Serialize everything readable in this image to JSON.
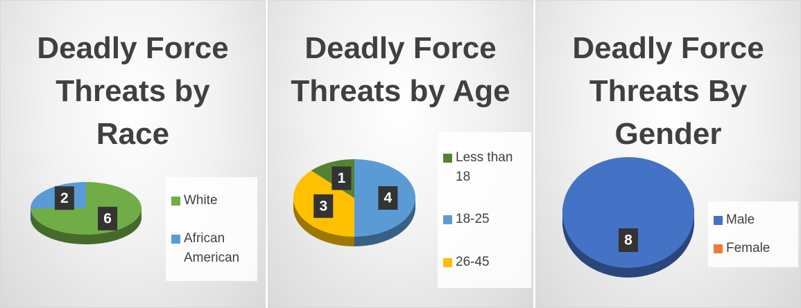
{
  "chart_data": [
    {
      "type": "pie",
      "title": "Deadly Force Threats by Race",
      "categories": [
        "White",
        "African American"
      ],
      "values": [
        6,
        2
      ],
      "colors": [
        "#70ad47",
        "#5b9bd5"
      ],
      "legend": "right"
    },
    {
      "type": "pie",
      "title": "Deadly Force Threats by Age",
      "categories": [
        "Less than 18",
        "18-25",
        "26-45"
      ],
      "values": [
        1,
        4,
        3
      ],
      "colors": [
        "#548235",
        "#5b9bd5",
        "#ffc000"
      ],
      "legend": "right"
    },
    {
      "type": "pie",
      "title": "Deadly Force Threats By Gender",
      "categories": [
        "Male",
        "Female"
      ],
      "values": [
        8,
        0
      ],
      "colors": [
        "#4472c4",
        "#ed7d31"
      ],
      "legend": "right"
    }
  ]
}
